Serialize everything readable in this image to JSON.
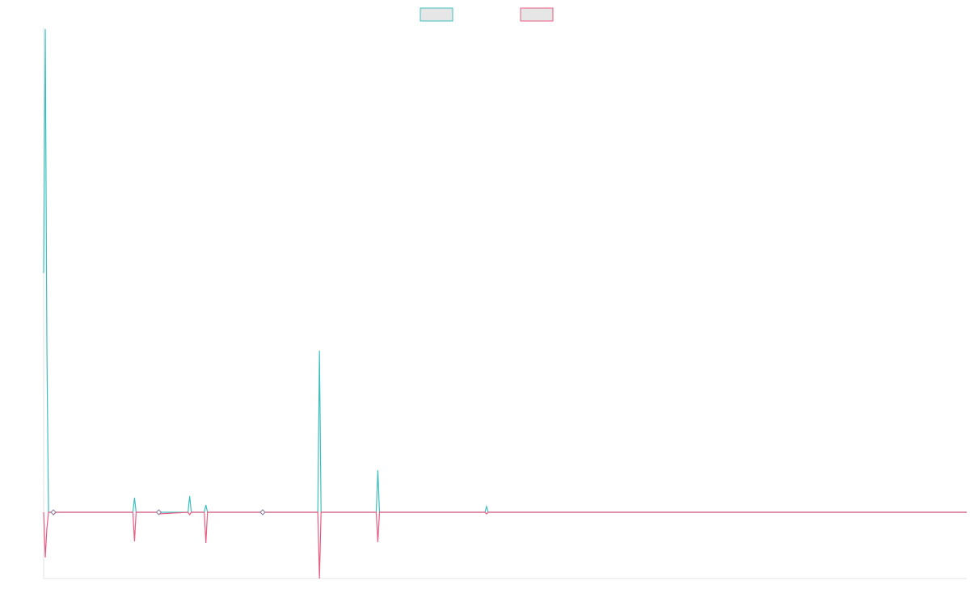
{
  "chart_data": {
    "type": "line",
    "title": "",
    "xlabel": "",
    "ylabel": "",
    "x": [
      0,
      1,
      2,
      3,
      4,
      5,
      6,
      7,
      8,
      9,
      10,
      11,
      12,
      13,
      14,
      15,
      16,
      17,
      18,
      19,
      20,
      21,
      22,
      23,
      24,
      25,
      26,
      27,
      28,
      29,
      30,
      31,
      32,
      33,
      34,
      35,
      36,
      37,
      38,
      39,
      40,
      41,
      42,
      43,
      44,
      45,
      46,
      47,
      48,
      49,
      50,
      51,
      52,
      53,
      54,
      55,
      56,
      57,
      58,
      59,
      60,
      61,
      62,
      63,
      64,
      65,
      66,
      67,
      68,
      69,
      70,
      71,
      72,
      73,
      74,
      75,
      76,
      77,
      78,
      79,
      80,
      81,
      82,
      83,
      84,
      85,
      86,
      87,
      88,
      89,
      90,
      91,
      92,
      93,
      94,
      95,
      96,
      97,
      98,
      99,
      100,
      101,
      102,
      103,
      104,
      105,
      106,
      107,
      108,
      109,
      110,
      111,
      112,
      113,
      114,
      115,
      116,
      117,
      118,
      119,
      120,
      121,
      122,
      123,
      124,
      125,
      126,
      127,
      128,
      129,
      130,
      131,
      132,
      133,
      134,
      135,
      136,
      137,
      138,
      139,
      140,
      141,
      142,
      143,
      144,
      145,
      146,
      147,
      148,
      149,
      150,
      151,
      152,
      153,
      154,
      155,
      156,
      157,
      158,
      159,
      160,
      161,
      162,
      163,
      164,
      165,
      166,
      167,
      168,
      169,
      170,
      171,
      172,
      173,
      174,
      175,
      176,
      177,
      178,
      179,
      180,
      181,
      182,
      183,
      184,
      185,
      186,
      187,
      188,
      189,
      190,
      191,
      192,
      193,
      194,
      195,
      196,
      197,
      198,
      199,
      200,
      201,
      202,
      203,
      204,
      205,
      206,
      207,
      208,
      209,
      210,
      211,
      212,
      213,
      214,
      215,
      216,
      217,
      218,
      219,
      220,
      221,
      222,
      223,
      224,
      225,
      226,
      227,
      228,
      229,
      230,
      231,
      232,
      233,
      234,
      235,
      236,
      237,
      238,
      239,
      240,
      241,
      242,
      243,
      244,
      245,
      246,
      247,
      248,
      249,
      250,
      251,
      252,
      253,
      254,
      255,
      256,
      257,
      258,
      259,
      260,
      261,
      262,
      263,
      264,
      265,
      266,
      267,
      268,
      269,
      270,
      271,
      272,
      273,
      274,
      275,
      276,
      277,
      278,
      279,
      280,
      281,
      282,
      283,
      284,
      285,
      286,
      287,
      288,
      289,
      290,
      291,
      292,
      293,
      294,
      295,
      296,
      297,
      298,
      299,
      300,
      301,
      302,
      303,
      304,
      305,
      306,
      307,
      308,
      309,
      310,
      311,
      312,
      313,
      314,
      315,
      316,
      317,
      318,
      319,
      320,
      321,
      322,
      323,
      324,
      325,
      326,
      327,
      328,
      329,
      330,
      331,
      332,
      333,
      334,
      335,
      336,
      337,
      338,
      339,
      340,
      341,
      342,
      343,
      344,
      345,
      346,
      347,
      348,
      349,
      350,
      351,
      352,
      353,
      354,
      355,
      356,
      357,
      358,
      359,
      360,
      361,
      362,
      363,
      364,
      365,
      366,
      367,
      368,
      369,
      370,
      371,
      372,
      373,
      374,
      375,
      376,
      377,
      378,
      379,
      380,
      381,
      382,
      383,
      384,
      385,
      386,
      387,
      388,
      389,
      390,
      391,
      392,
      393,
      394,
      395,
      396,
      397,
      398,
      399,
      400,
      401,
      402,
      403,
      404,
      405,
      406,
      407,
      408,
      409,
      410,
      411,
      412,
      413,
      414,
      415,
      416,
      417,
      418,
      419,
      420,
      421,
      422,
      423,
      424,
      425,
      426,
      427,
      428,
      429,
      430,
      431,
      432,
      433,
      434,
      435,
      436,
      437,
      438,
      439,
      440,
      441,
      442,
      443,
      444,
      445,
      446,
      447,
      448,
      449,
      450,
      451,
      452,
      453,
      454,
      455,
      456,
      457,
      458,
      459,
      460,
      461,
      462,
      463,
      464,
      465,
      466,
      467,
      468,
      469,
      470,
      471,
      472,
      473,
      474,
      475,
      476,
      477,
      478,
      479,
      480,
      481,
      482,
      483,
      484,
      485,
      486,
      487,
      488,
      489,
      490,
      491,
      492,
      493,
      494,
      495,
      496,
      497,
      498,
      499,
      500,
      501,
      502,
      503,
      504,
      505,
      506,
      507,
      508,
      509,
      510,
      511,
      512,
      513,
      514,
      515,
      516,
      517,
      518,
      519,
      520,
      521,
      522,
      523,
      524,
      525,
      526,
      527,
      528,
      529,
      530,
      531,
      532,
      533,
      534,
      535,
      536,
      537,
      538,
      539,
      540,
      541,
      542,
      543,
      544,
      545,
      546,
      547,
      548,
      549,
      550,
      551,
      552,
      553,
      554,
      555,
      556,
      557,
      558,
      559,
      560,
      561,
      562,
      563,
      564,
      565,
      566,
      567,
      568,
      569
    ],
    "ylim": [
      -82,
      598
    ],
    "series": [
      {
        "color": "#3dbfc0",
        "points": [
          [
            0,
            296
          ],
          [
            1,
            598
          ],
          [
            2,
            205
          ],
          [
            3,
            0
          ],
          [
            5,
            0
          ],
          [
            6,
            0
          ],
          [
            7,
            0
          ],
          [
            8,
            0
          ],
          [
            55,
            0
          ],
          [
            56,
            18
          ],
          [
            57,
            0
          ],
          [
            70,
            0
          ],
          [
            71,
            0
          ],
          [
            89,
            0
          ],
          [
            90,
            20
          ],
          [
            91,
            0
          ],
          [
            99,
            0
          ],
          [
            100,
            9
          ],
          [
            101,
            0
          ],
          [
            134,
            0
          ],
          [
            135,
            1
          ],
          [
            136,
            0
          ],
          [
            169,
            0
          ],
          [
            170,
            200
          ],
          [
            171,
            0
          ],
          [
            205,
            0
          ],
          [
            206,
            52
          ],
          [
            207,
            0
          ],
          [
            272,
            0
          ],
          [
            273,
            7
          ],
          [
            274,
            0
          ],
          [
            569,
            0
          ]
        ]
      },
      {
        "color": "#e85c82",
        "points": [
          [
            0,
            0
          ],
          [
            1,
            -56
          ],
          [
            2,
            -20
          ],
          [
            3,
            0
          ],
          [
            5,
            0
          ],
          [
            6,
            -3
          ],
          [
            7,
            -1
          ],
          [
            8,
            0
          ],
          [
            55,
            0
          ],
          [
            56,
            -36
          ],
          [
            57,
            0
          ],
          [
            70,
            0
          ],
          [
            71,
            -2
          ],
          [
            89,
            0
          ],
          [
            90,
            -3
          ],
          [
            91,
            0
          ],
          [
            99,
            0
          ],
          [
            100,
            -38
          ],
          [
            101,
            0
          ],
          [
            134,
            0
          ],
          [
            135,
            -2
          ],
          [
            136,
            0
          ],
          [
            169,
            0
          ],
          [
            170,
            -82
          ],
          [
            171,
            0
          ],
          [
            205,
            0
          ],
          [
            206,
            -37
          ],
          [
            207,
            0
          ],
          [
            272,
            0
          ],
          [
            273,
            -2
          ],
          [
            274,
            0
          ],
          [
            569,
            0
          ]
        ]
      }
    ],
    "legend": {
      "position": "top-center",
      "entries": [
        {
          "color": "#3dbfc0",
          "fill": "#e6e6e6"
        },
        {
          "color": "#e85c82",
          "fill": "#e6e6e6"
        }
      ]
    },
    "grid": false
  }
}
